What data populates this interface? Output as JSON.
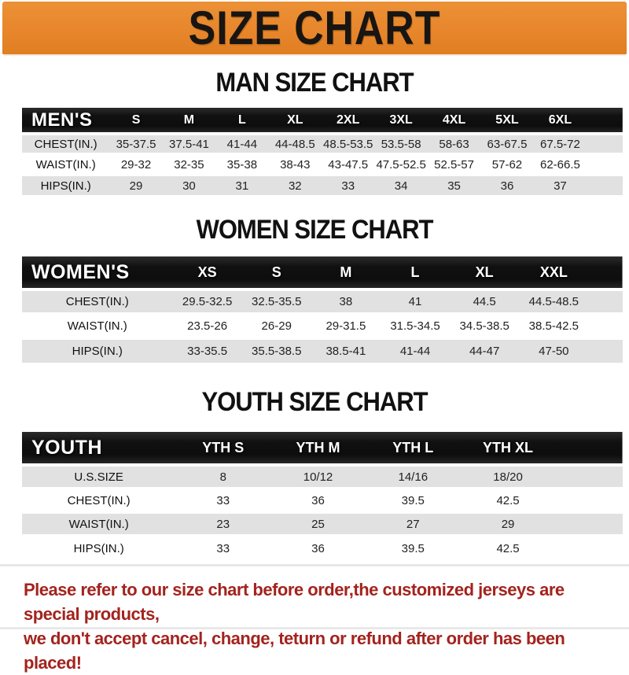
{
  "banner": {
    "title": "SIZE CHART",
    "bg_color": "#E8862C",
    "text_color": "#181512"
  },
  "colors": {
    "table_header_bg": "#111111",
    "table_header_text": "#FFFFFF",
    "stripe_gray": "#E1E1E1",
    "footer_red": "#A3231E"
  },
  "sections": [
    {
      "heading": "MAN SIZE CHART",
      "table": {
        "header_label": "MEN'S",
        "columns": [
          "S",
          "M",
          "L",
          "XL",
          "2XL",
          "3XL",
          "4XL",
          "5XL",
          "6XL"
        ],
        "rows": [
          {
            "label": "CHEST(IN.)",
            "values": [
              "35-37.5",
              "37.5-41",
              "41-44",
              "44-48.5",
              "48.5-53.5",
              "53.5-58",
              "58-63",
              "63-67.5",
              "67.5-72"
            ]
          },
          {
            "label": "WAIST(IN.)",
            "values": [
              "29-32",
              "32-35",
              "35-38",
              "38-43",
              "43-47.5",
              "47.5-52.5",
              "52.5-57",
              "57-62",
              "62-66.5"
            ]
          },
          {
            "label": "HIPS(IN.)",
            "values": [
              "29",
              "30",
              "31",
              "32",
              "33",
              "34",
              "35",
              "36",
              "37"
            ]
          }
        ]
      }
    },
    {
      "heading": "WOMEN SIZE CHART",
      "table": {
        "header_label": "WOMEN'S",
        "columns": [
          "XS",
          "S",
          "M",
          "L",
          "XL",
          "XXL"
        ],
        "rows": [
          {
            "label": "CHEST(IN.)",
            "values": [
              "29.5-32.5",
              "32.5-35.5",
              "38",
              "41",
              "44.5",
              "44.5-48.5"
            ]
          },
          {
            "label": "WAIST(IN.)",
            "values": [
              "23.5-26",
              "26-29",
              "29-31.5",
              "31.5-34.5",
              "34.5-38.5",
              "38.5-42.5"
            ]
          },
          {
            "label": "HIPS(IN.)",
            "values": [
              "33-35.5",
              "35.5-38.5",
              "38.5-41",
              "41-44",
              "44-47",
              "47-50"
            ]
          }
        ]
      }
    },
    {
      "heading": "YOUTH SIZE CHART",
      "table": {
        "header_label": "YOUTH",
        "columns": [
          "YTH S",
          "YTH M",
          "YTH L",
          "YTH XL"
        ],
        "rows": [
          {
            "label": "U.S.SIZE",
            "values": [
              "8",
              "10/12",
              "14/16",
              "18/20"
            ]
          },
          {
            "label": "CHEST(IN.)",
            "values": [
              "33",
              "36",
              "39.5",
              "42.5"
            ]
          },
          {
            "label": "WAIST(IN.)",
            "values": [
              "23",
              "25",
              "27",
              "29"
            ]
          },
          {
            "label": "HIPS(IN.)",
            "values": [
              "33",
              "36",
              "39.5",
              "42.5"
            ]
          }
        ]
      }
    }
  ],
  "footer": {
    "line1": "Please refer to our size chart before order,the customized jerseys are special products,",
    "line2": "we don't accept cancel, change, teturn or refund after order has been placed!"
  }
}
